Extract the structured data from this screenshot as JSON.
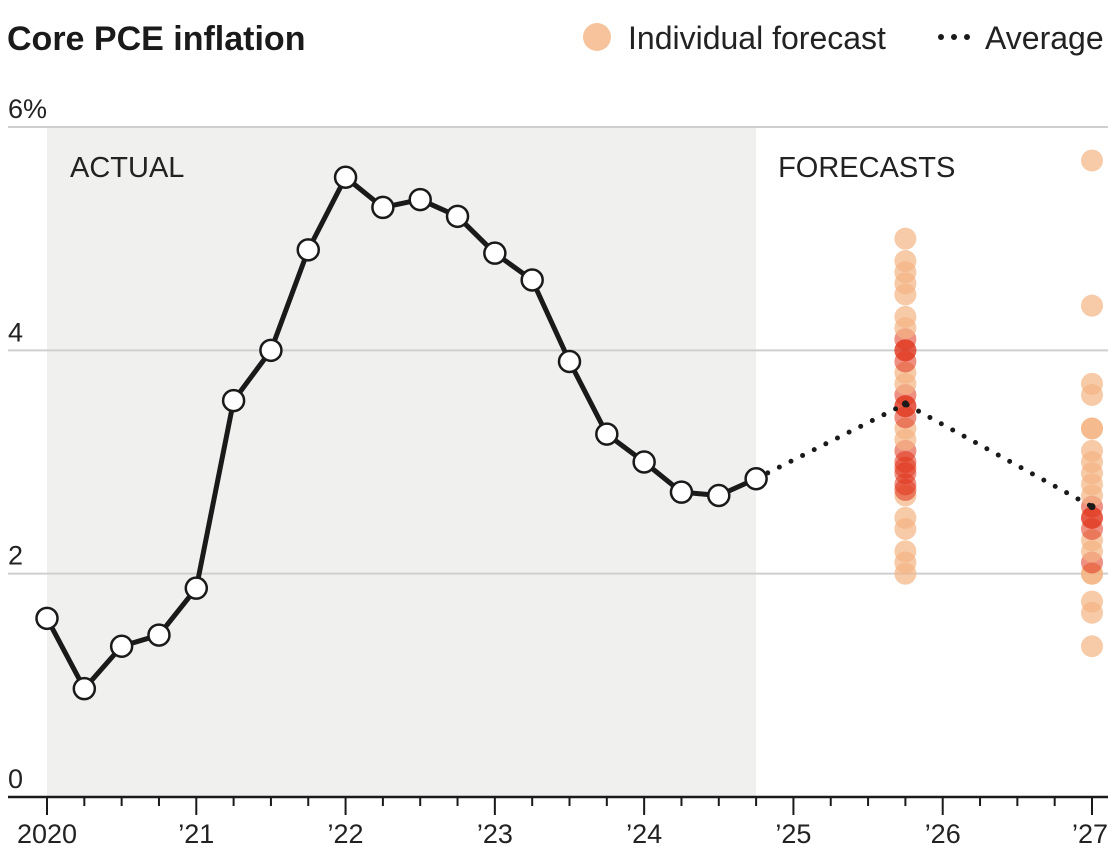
{
  "chart_data": {
    "type": "line",
    "title": "Core PCE inflation",
    "legend": {
      "forecast_label": "Individual forecast",
      "average_label": "Average"
    },
    "regions": {
      "actual_label": "ACTUAL",
      "forecast_label": "FORECASTS"
    },
    "y_ticks": [
      {
        "value": 0,
        "label": "0"
      },
      {
        "value": 2,
        "label": "2"
      },
      {
        "value": 4,
        "label": "4"
      },
      {
        "value": 6,
        "label": "6%"
      }
    ],
    "ylim": [
      0,
      6
    ],
    "xlim": [
      2020,
      2027
    ],
    "x_ticks": [
      {
        "value": 2020,
        "label": "2020"
      },
      {
        "value": 2021,
        "label": "’21"
      },
      {
        "value": 2022,
        "label": "’22"
      },
      {
        "value": 2023,
        "label": "’23"
      },
      {
        "value": 2024,
        "label": "’24"
      },
      {
        "value": 2025,
        "label": "’25"
      },
      {
        "value": 2026,
        "label": "’26"
      },
      {
        "value": 2027,
        "label": "’27"
      }
    ],
    "actual_end": 2024.75,
    "actual_series": {
      "name": "Actual",
      "x": [
        2020.0,
        2020.25,
        2020.5,
        2020.75,
        2021.0,
        2021.25,
        2021.5,
        2021.75,
        2022.0,
        2022.25,
        2022.5,
        2022.75,
        2023.0,
        2023.25,
        2023.5,
        2023.75,
        2024.0,
        2024.25,
        2024.5,
        2024.75
      ],
      "y": [
        1.6,
        0.97,
        1.35,
        1.45,
        1.87,
        3.55,
        4.0,
        4.9,
        5.55,
        5.28,
        5.35,
        5.2,
        4.87,
        4.63,
        3.9,
        3.25,
        3.0,
        2.73,
        2.7,
        2.85
      ]
    },
    "average_series": {
      "name": "Average",
      "x": [
        2024.75,
        2025.75,
        2027.0
      ],
      "y": [
        2.85,
        3.52,
        2.6
      ]
    },
    "forecasts": [
      {
        "x": 2025.75,
        "y": [
          2.0,
          2.1,
          2.2,
          2.4,
          2.5,
          2.7,
          2.75,
          2.8,
          2.9,
          2.95,
          3.0,
          3.1,
          3.2,
          3.3,
          3.4,
          3.5,
          3.5,
          3.6,
          3.7,
          3.8,
          3.9,
          4.0,
          4.0,
          4.1,
          4.2,
          4.3,
          4.5,
          4.6,
          4.7,
          4.8,
          5.0
        ]
      },
      {
        "x": 2027.0,
        "y": [
          1.35,
          1.65,
          1.75,
          2.0,
          2.0,
          2.1,
          2.2,
          2.3,
          2.4,
          2.5,
          2.5,
          2.6,
          2.7,
          2.8,
          2.9,
          3.0,
          3.1,
          3.3,
          3.3,
          3.6,
          3.7,
          4.4,
          5.7
        ]
      }
    ],
    "colors": {
      "forecast_light": "#f4b483",
      "forecast_dark": "#e0341c",
      "actual_shade": "#f0f0ef",
      "line": "#1a1a1a",
      "grid": "#cfcfcf"
    }
  }
}
